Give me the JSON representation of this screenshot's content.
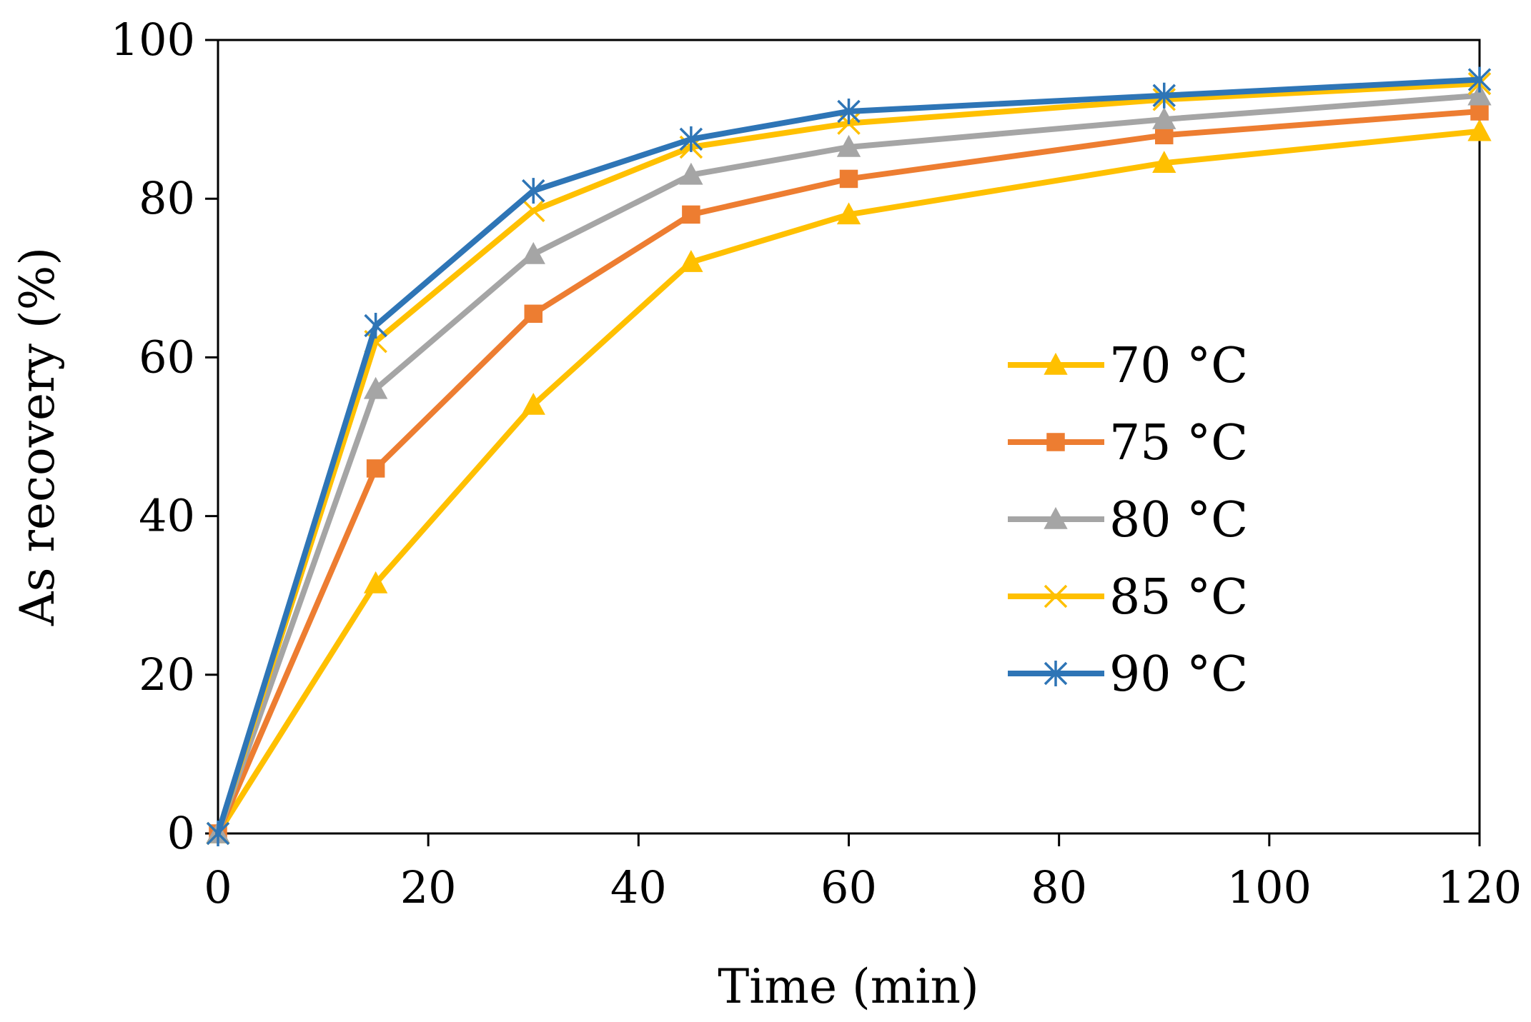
{
  "chart_data": {
    "type": "line",
    "title": "",
    "xlabel": "Time (min)",
    "ylabel": "As recovery (%)",
    "xlim": [
      0,
      120
    ],
    "ylim": [
      0,
      100
    ],
    "xticks": [
      0,
      20,
      40,
      60,
      80,
      100,
      120
    ],
    "yticks": [
      0,
      20,
      40,
      60,
      80,
      100
    ],
    "grid": false,
    "legend_position": "center-right",
    "x": [
      0,
      15,
      30,
      45,
      60,
      90,
      120
    ],
    "series": [
      {
        "name": "70 °C",
        "color": "#FFC000",
        "marker": "triangle",
        "values": [
          0,
          31.5,
          54,
          72,
          78,
          84.5,
          88.5
        ]
      },
      {
        "name": "75 °C",
        "color": "#ED7D31",
        "marker": "square",
        "values": [
          0,
          46,
          65.5,
          78,
          82.5,
          88,
          91
        ]
      },
      {
        "name": "80 °C",
        "color": "#A5A5A5",
        "marker": "triangle",
        "values": [
          0,
          56,
          73,
          83,
          86.5,
          90,
          93
        ]
      },
      {
        "name": "85 °C",
        "color": "#FFC000",
        "marker": "x",
        "values": [
          0,
          62,
          78.5,
          86.5,
          89.5,
          92.5,
          94.5
        ]
      },
      {
        "name": "90 °C",
        "color": "#2E75B6",
        "marker": "star",
        "values": [
          0,
          64,
          81,
          87.5,
          91,
          93,
          95
        ]
      }
    ]
  }
}
